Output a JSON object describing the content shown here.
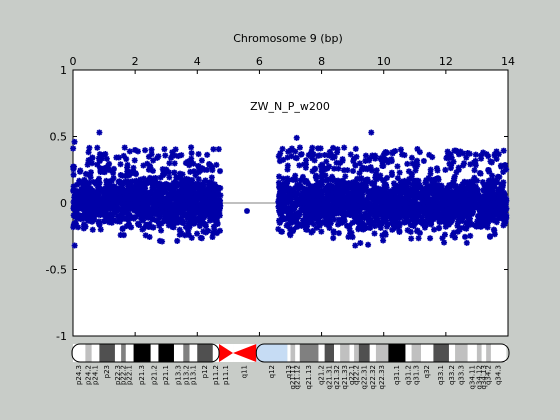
{
  "chart_data": {
    "type": "scatter",
    "title": "Chromosome 9 (bp)",
    "annotation": "ZW_N_P_w200",
    "xlim": [
      0,
      14
    ],
    "ylim": [
      -1,
      1
    ],
    "x_ticks": [
      "0",
      "2",
      "4",
      "6",
      "8",
      "10",
      "12",
      "14"
    ],
    "y_ticks": [
      "1",
      "0.5",
      "0",
      "-0.5",
      "-1"
    ],
    "x_axis_position": "top",
    "grid": false,
    "colors": {
      "points": "#0000a8",
      "baseline": "#808080",
      "centromere": "#ff0000",
      "heterochromatin": "#c6dcf4",
      "background": "#c8ccc8"
    },
    "series": [
      {
        "segments": [
          {
            "x_range": [
              0.0,
              4.75
            ],
            "y_center": 0.0,
            "y_spread": [
              -0.32,
              0.42
            ]
          },
          {
            "x_range": [
              6.6,
              13.95
            ],
            "y_center": 0.0,
            "y_spread": [
              -0.32,
              0.42
            ]
          }
        ],
        "notable_points": [
          {
            "x": 0.85,
            "y": 0.53
          },
          {
            "x": 9.6,
            "y": 0.53
          },
          {
            "x": 5.6,
            "y": -0.06
          },
          {
            "x": 7.2,
            "y": 0.49
          },
          {
            "x": 13.2,
            "y": 0.38
          },
          {
            "x": 0.05,
            "y": 0.46
          }
        ]
      }
    ],
    "ideogram": {
      "bands": [
        {
          "label": "p24.3",
          "start": 0.0,
          "end": 0.4,
          "stain": "white"
        },
        {
          "label": "p24.2",
          "start": 0.4,
          "end": 0.6,
          "stain": "lightgray"
        },
        {
          "label": "p24.1",
          "start": 0.6,
          "end": 0.85,
          "stain": "white"
        },
        {
          "label": "p23",
          "start": 0.85,
          "end": 1.35,
          "stain": "darkgray"
        },
        {
          "label": "p22.3",
          "start": 1.35,
          "end": 1.55,
          "stain": "white"
        },
        {
          "label": "p22.2",
          "start": 1.55,
          "end": 1.7,
          "stain": "gray"
        },
        {
          "label": "p22.1",
          "start": 1.7,
          "end": 1.95,
          "stain": "white"
        },
        {
          "label": "p21.3",
          "start": 1.95,
          "end": 2.5,
          "stain": "black"
        },
        {
          "label": "p21.2",
          "start": 2.5,
          "end": 2.75,
          "stain": "white"
        },
        {
          "label": "p21.1",
          "start": 2.75,
          "end": 3.25,
          "stain": "black"
        },
        {
          "label": "p13.3",
          "start": 3.25,
          "end": 3.55,
          "stain": "white"
        },
        {
          "label": "p13.2",
          "start": 3.55,
          "end": 3.75,
          "stain": "gray"
        },
        {
          "label": "p13.1",
          "start": 3.75,
          "end": 4.0,
          "stain": "white"
        },
        {
          "label": "p12",
          "start": 4.0,
          "end": 4.5,
          "stain": "darkgray"
        },
        {
          "label": "p11.2",
          "start": 4.5,
          "end": 4.7,
          "stain": "white"
        },
        {
          "label": "p11.1",
          "start": 4.7,
          "end": 5.15,
          "stain": "centromere-p"
        },
        {
          "label": "q11",
          "start": 5.15,
          "end": 5.9,
          "stain": "centromere-q"
        },
        {
          "label": "q12",
          "start": 5.9,
          "end": 6.9,
          "stain": "heterochromatin"
        },
        {
          "label": "q13",
          "start": 6.9,
          "end": 7.0,
          "stain": "white"
        },
        {
          "label": "q21.11",
          "start": 7.0,
          "end": 7.15,
          "stain": "lightgray"
        },
        {
          "label": "q21.12",
          "start": 7.15,
          "end": 7.3,
          "stain": "white"
        },
        {
          "label": "q21.13",
          "start": 7.3,
          "end": 7.9,
          "stain": "gray"
        },
        {
          "label": "q21.2",
          "start": 7.9,
          "end": 8.1,
          "stain": "white"
        },
        {
          "label": "q21.31",
          "start": 8.1,
          "end": 8.4,
          "stain": "darkgray"
        },
        {
          "label": "q21.32",
          "start": 8.4,
          "end": 8.6,
          "stain": "white"
        },
        {
          "label": "q21.33",
          "start": 8.6,
          "end": 8.9,
          "stain": "lightgray"
        },
        {
          "label": "q22.1",
          "start": 8.9,
          "end": 9.05,
          "stain": "white"
        },
        {
          "label": "q22.2",
          "start": 9.05,
          "end": 9.2,
          "stain": "lightgray"
        },
        {
          "label": "q22.31",
          "start": 9.2,
          "end": 9.55,
          "stain": "darkgray"
        },
        {
          "label": "q22.32",
          "start": 9.55,
          "end": 9.75,
          "stain": "white"
        },
        {
          "label": "q22.33",
          "start": 9.75,
          "end": 10.15,
          "stain": "lightgray"
        },
        {
          "label": "q31.1",
          "start": 10.15,
          "end": 10.7,
          "stain": "black"
        },
        {
          "label": "q31.2",
          "start": 10.7,
          "end": 10.9,
          "stain": "white"
        },
        {
          "label": "q31.3",
          "start": 10.9,
          "end": 11.2,
          "stain": "lightgray"
        },
        {
          "label": "q32",
          "start": 11.2,
          "end": 11.6,
          "stain": "white"
        },
        {
          "label": "q33.1",
          "start": 11.6,
          "end": 12.1,
          "stain": "darkgray"
        },
        {
          "label": "q33.2",
          "start": 12.1,
          "end": 12.3,
          "stain": "white"
        },
        {
          "label": "q33.3",
          "start": 12.3,
          "end": 12.7,
          "stain": "lightgray"
        },
        {
          "label": "q34.11",
          "start": 12.7,
          "end": 13.0,
          "stain": "white"
        },
        {
          "label": "q34.12",
          "start": 13.0,
          "end": 13.15,
          "stain": "lightgray"
        },
        {
          "label": "q34.13",
          "start": 13.15,
          "end": 13.3,
          "stain": "white"
        },
        {
          "label": "q34.2",
          "start": 13.3,
          "end": 13.45,
          "stain": "lightgray"
        },
        {
          "label": "q34.3",
          "start": 13.45,
          "end": 13.95,
          "stain": "white"
        }
      ]
    }
  }
}
